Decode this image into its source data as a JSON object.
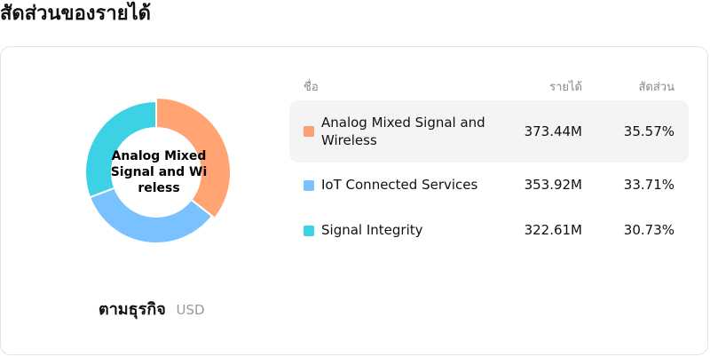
{
  "title": "สัดส่วนของรายได้",
  "center_label": "Analog Mixed Signal and Wireless",
  "caption": {
    "by": "ตามธุรกิจ",
    "currency": "USD"
  },
  "table_headers": {
    "name": "ชื่อ",
    "revenue": "รายได้",
    "share": "สัดส่วน"
  },
  "chart_data": {
    "type": "pie",
    "variant": "donut",
    "categories": [
      "Analog Mixed Signal and Wireless",
      "IoT Connected Services",
      "Signal Integrity"
    ],
    "values": [
      373.44,
      353.92,
      322.61
    ],
    "value_labels": [
      "373.44M",
      "353.92M",
      "322.61M"
    ],
    "shares": [
      "35.57%",
      "33.71%",
      "30.73%"
    ],
    "colors": [
      "#FFA472",
      "#79C2FF",
      "#3DD1E6"
    ],
    "swatch_colors": [
      "#FF9E72",
      "#79C2FF",
      "#3DD1E6"
    ],
    "highlighted_index": 0,
    "unit": "USD",
    "legend": "right"
  }
}
